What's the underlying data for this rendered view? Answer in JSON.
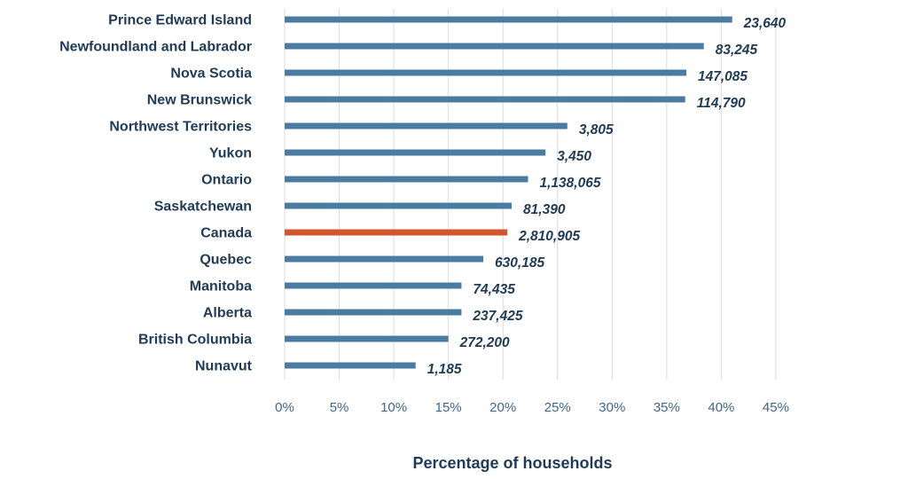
{
  "chart_data": {
    "type": "bar",
    "orientation": "horizontal",
    "xlabel": "Percentage of households",
    "xlim": [
      0,
      45
    ],
    "x_ticks": [
      "0%",
      "5%",
      "10%",
      "15%",
      "20%",
      "25%",
      "30%",
      "35%",
      "40%",
      "45%"
    ],
    "grid": true,
    "categories": [
      "Prince Edward Island",
      "Newfoundland and Labrador",
      "Nova Scotia",
      "New Brunswick",
      "Northwest Territories",
      "Yukon",
      "Ontario",
      "Saskatchewan",
      "Canada",
      "Quebec",
      "Manitoba",
      "Alberta",
      "British Columbia",
      "Nunavut"
    ],
    "values": [
      41.0,
      38.4,
      36.8,
      36.7,
      25.9,
      23.9,
      22.3,
      20.8,
      20.4,
      18.2,
      16.2,
      16.2,
      15.0,
      12.0
    ],
    "data_labels": [
      "23,640",
      "83,245",
      "147,085",
      "114,790",
      "3,805",
      "3,450",
      "1,138,065",
      "81,390",
      "2,810,905",
      "630,185",
      "74,435",
      "237,425",
      "272,200",
      "1,185"
    ],
    "colors": {
      "default_bar": "#4a7ba0",
      "highlight_bar": "#d1572f",
      "label_text": "#1f3b57",
      "tick_text": "#3f6787",
      "grid": "#d9dde2"
    },
    "highlight_category": "Canada"
  }
}
